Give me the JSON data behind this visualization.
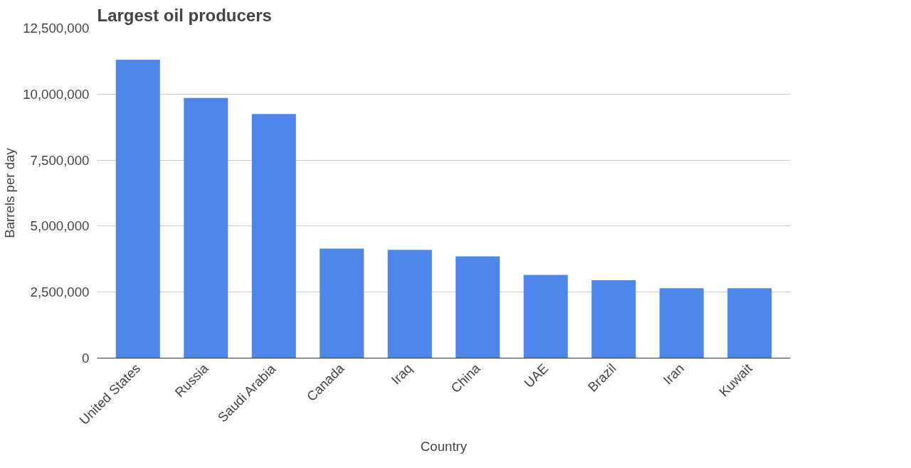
{
  "chart_data": {
    "type": "bar",
    "title": "Largest oil producers",
    "xlabel": "Country",
    "ylabel": "Barrels per day",
    "categories": [
      "United States",
      "Russia",
      "Saudi Arabia",
      "Canada",
      "Iraq",
      "China",
      "UAE",
      "Brazil",
      "Iran",
      "Kuwait"
    ],
    "values": [
      11300000,
      9850000,
      9250000,
      4150000,
      4100000,
      3850000,
      3150000,
      2950000,
      2650000,
      2650000
    ],
    "color": "#4f86ec",
    "ylim": [
      0,
      12500000
    ],
    "yticks": [
      {
        "value": 0,
        "label": "0"
      },
      {
        "value": 2500000,
        "label": "2,500,000"
      },
      {
        "value": 5000000,
        "label": "5,000,000"
      },
      {
        "value": 7500000,
        "label": "7,500,000"
      },
      {
        "value": 10000000,
        "label": "10,000,000"
      },
      {
        "value": 12500000,
        "label": "12,500,000"
      }
    ],
    "grid": "y"
  }
}
